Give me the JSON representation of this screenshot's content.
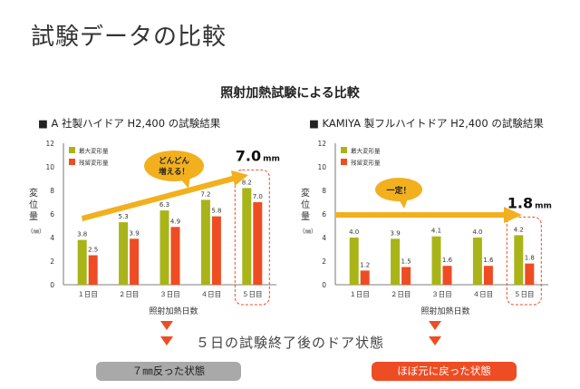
{
  "page_title": "試験データの比較",
  "subtitle": "照射加熱試験による比較",
  "charts": [
    {
      "heading": "■ A 社製ハイドア H2,400 の試験結果",
      "callout": "どんどん増える！",
      "result": "7.0",
      "result_unit": "mm"
    },
    {
      "heading": "■ KAMIYA 製フルハイトドア H2,400 の試験結果",
      "callout": "一定！",
      "result": "1.8",
      "result_unit": "mm"
    }
  ],
  "conclusion": "５日の試験終了後のドア状態",
  "outcomes": [
    "７㎜反った状態",
    "ほぼ元に戻った状態"
  ],
  "colors": {
    "max": "#a8b418",
    "residual": "#ee4c23",
    "arrow": "#f2b01e",
    "accent": "#ee4c23"
  },
  "chart_data": [
    {
      "type": "bar",
      "categories": [
        "１日目",
        "２日目",
        "３日目",
        "４日目",
        "５日目"
      ],
      "series": [
        {
          "name": "最大変形量",
          "values": [
            3.8,
            5.3,
            6.3,
            7.2,
            8.2
          ]
        },
        {
          "name": "残留変形量",
          "values": [
            2.5,
            3.9,
            4.9,
            5.8,
            7.0
          ]
        }
      ],
      "xlabel": "照射加熱日数",
      "ylabel": "変位量（㎜）",
      "ylim": [
        0,
        12
      ],
      "yticks": [
        0,
        2,
        4,
        6,
        8,
        10,
        12
      ],
      "legend": "top-left",
      "grid": false
    },
    {
      "type": "bar",
      "categories": [
        "１日目",
        "２日目",
        "３日目",
        "４日目",
        "５日目"
      ],
      "series": [
        {
          "name": "最大変形量",
          "values": [
            4.0,
            3.9,
            4.1,
            4.0,
            4.2
          ]
        },
        {
          "name": "残留変形量",
          "values": [
            1.2,
            1.5,
            1.6,
            1.6,
            1.8
          ]
        }
      ],
      "xlabel": "照射加熱日数",
      "ylabel": "変位量（㎜）",
      "ylim": [
        0,
        12
      ],
      "yticks": [
        0,
        2,
        4,
        6,
        8,
        10,
        12
      ],
      "legend": "top-left",
      "grid": false
    }
  ]
}
